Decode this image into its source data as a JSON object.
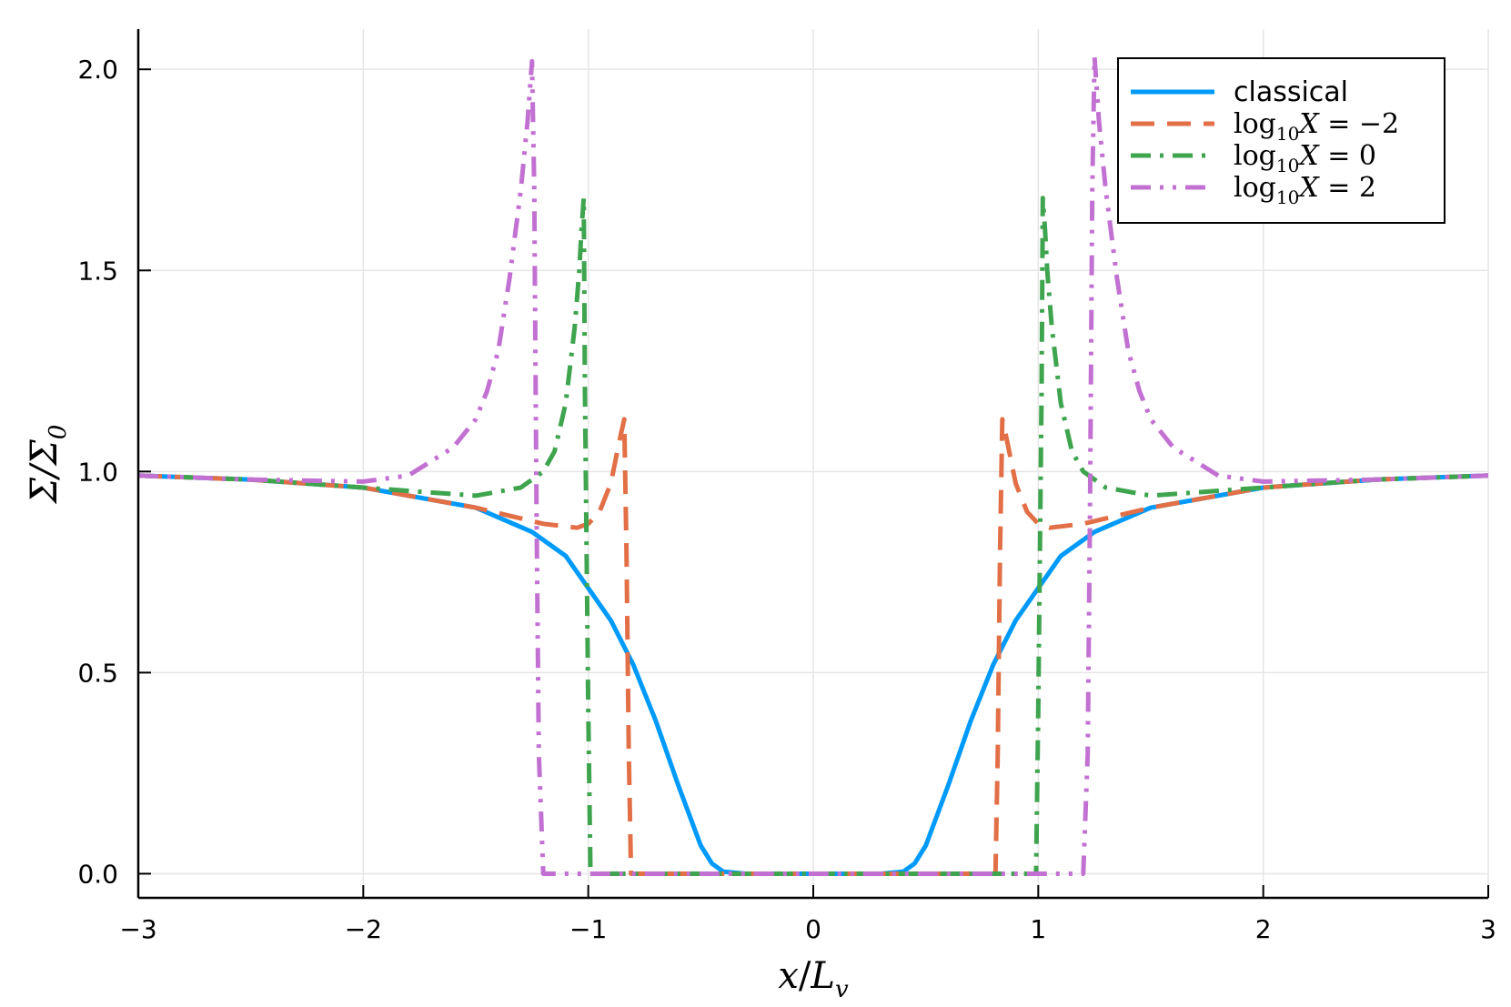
{
  "chart_data": {
    "type": "line",
    "xlabel": "x/L_v",
    "ylabel": "Σ/Σ_0",
    "xlim": [
      -3,
      3
    ],
    "ylim": [
      -0.06,
      2.1
    ],
    "xticks": [
      -3,
      -2,
      -1,
      0,
      1,
      2,
      3
    ],
    "xtick_labels": [
      "−3",
      "−2",
      "−1",
      "0",
      "1",
      "2",
      "3"
    ],
    "yticks": [
      0,
      0.5,
      1,
      1.5,
      2
    ],
    "ytick_labels": [
      "0.0",
      "0.5",
      "1.0",
      "1.5",
      "2.0"
    ],
    "grid": true,
    "legend_position": "top-right",
    "series": [
      {
        "name": "classical",
        "color": "#009AFA",
        "style": "solid",
        "x": [
          -3,
          -2.5,
          -2,
          -1.5,
          -1.25,
          -1.1,
          -1,
          -0.9,
          -0.8,
          -0.7,
          -0.6,
          -0.5,
          -0.45,
          -0.4,
          -0.3,
          0,
          0.3,
          0.4,
          0.45,
          0.5,
          0.6,
          0.7,
          0.8,
          0.9,
          1,
          1.1,
          1.25,
          1.5,
          2,
          2.5,
          3
        ],
        "y": [
          0.99,
          0.98,
          0.96,
          0.91,
          0.85,
          0.79,
          0.71,
          0.63,
          0.52,
          0.38,
          0.22,
          0.07,
          0.025,
          0.005,
          0,
          0,
          0,
          0.005,
          0.025,
          0.07,
          0.22,
          0.38,
          0.52,
          0.63,
          0.71,
          0.79,
          0.85,
          0.91,
          0.96,
          0.98,
          0.99
        ]
      },
      {
        "name": "log₁₀X = −2",
        "label_parts": {
          "fn": "log",
          "sub": "10",
          "var": "X",
          "eq": " = −2"
        },
        "color": "#E26F46",
        "style": "dash",
        "x": [
          -3,
          -2.5,
          -2,
          -1.5,
          -1.2,
          -1.05,
          -1.0,
          -0.95,
          -0.9,
          -0.86,
          -0.84,
          -0.83,
          -0.82,
          -0.81,
          0,
          0.81,
          0.82,
          0.83,
          0.84,
          0.86,
          0.9,
          0.95,
          1.0,
          1.05,
          1.2,
          1.5,
          2,
          2.5,
          3
        ],
        "y": [
          0.99,
          0.98,
          0.96,
          0.91,
          0.87,
          0.86,
          0.87,
          0.9,
          0.97,
          1.08,
          1.13,
          0.8,
          0.3,
          0,
          0,
          0,
          0.3,
          0.8,
          1.13,
          1.08,
          0.97,
          0.9,
          0.87,
          0.86,
          0.87,
          0.91,
          0.96,
          0.98,
          0.99
        ]
      },
      {
        "name": "log₁₀X = 0",
        "label_parts": {
          "fn": "log",
          "sub": "10",
          "var": "X",
          "eq": " = 0"
        },
        "color": "#3EA44E",
        "style": "dashdot",
        "x": [
          -3,
          -2.5,
          -2,
          -1.5,
          -1.3,
          -1.2,
          -1.15,
          -1.1,
          -1.06,
          -1.04,
          -1.03,
          -1.02,
          -1.015,
          -1.0,
          -0.99,
          0,
          0.99,
          1.0,
          1.015,
          1.02,
          1.03,
          1.04,
          1.06,
          1.1,
          1.15,
          1.2,
          1.3,
          1.5,
          2,
          2.5,
          3
        ],
        "y": [
          0.99,
          0.98,
          0.96,
          0.94,
          0.96,
          1.0,
          1.05,
          1.17,
          1.36,
          1.5,
          1.6,
          1.68,
          1.2,
          0.4,
          0,
          0,
          0,
          0.4,
          1.2,
          1.68,
          1.6,
          1.5,
          1.36,
          1.17,
          1.05,
          1.0,
          0.96,
          0.94,
          0.96,
          0.98,
          0.99
        ]
      },
      {
        "name": "log₁₀X = 2",
        "label_parts": {
          "fn": "log",
          "sub": "10",
          "var": "X",
          "eq": " = 2"
        },
        "color": "#C271D2",
        "style": "dashdotdot",
        "x": [
          -3,
          -2.5,
          -2,
          -1.8,
          -1.6,
          -1.5,
          -1.45,
          -1.4,
          -1.35,
          -1.3,
          -1.27,
          -1.25,
          -1.24,
          -1.23,
          -1.22,
          -1.2,
          0,
          1.2,
          1.22,
          1.23,
          1.24,
          1.25,
          1.27,
          1.3,
          1.35,
          1.4,
          1.45,
          1.5,
          1.6,
          1.8,
          2,
          2.5,
          3
        ],
        "y": [
          0.99,
          0.98,
          0.975,
          0.99,
          1.06,
          1.13,
          1.2,
          1.3,
          1.48,
          1.7,
          1.87,
          2.02,
          1.7,
          0.9,
          0.3,
          0,
          0,
          0,
          0.3,
          0.9,
          1.7,
          2.03,
          1.87,
          1.7,
          1.48,
          1.3,
          1.2,
          1.13,
          1.06,
          0.99,
          0.975,
          0.98,
          0.99
        ]
      }
    ]
  }
}
